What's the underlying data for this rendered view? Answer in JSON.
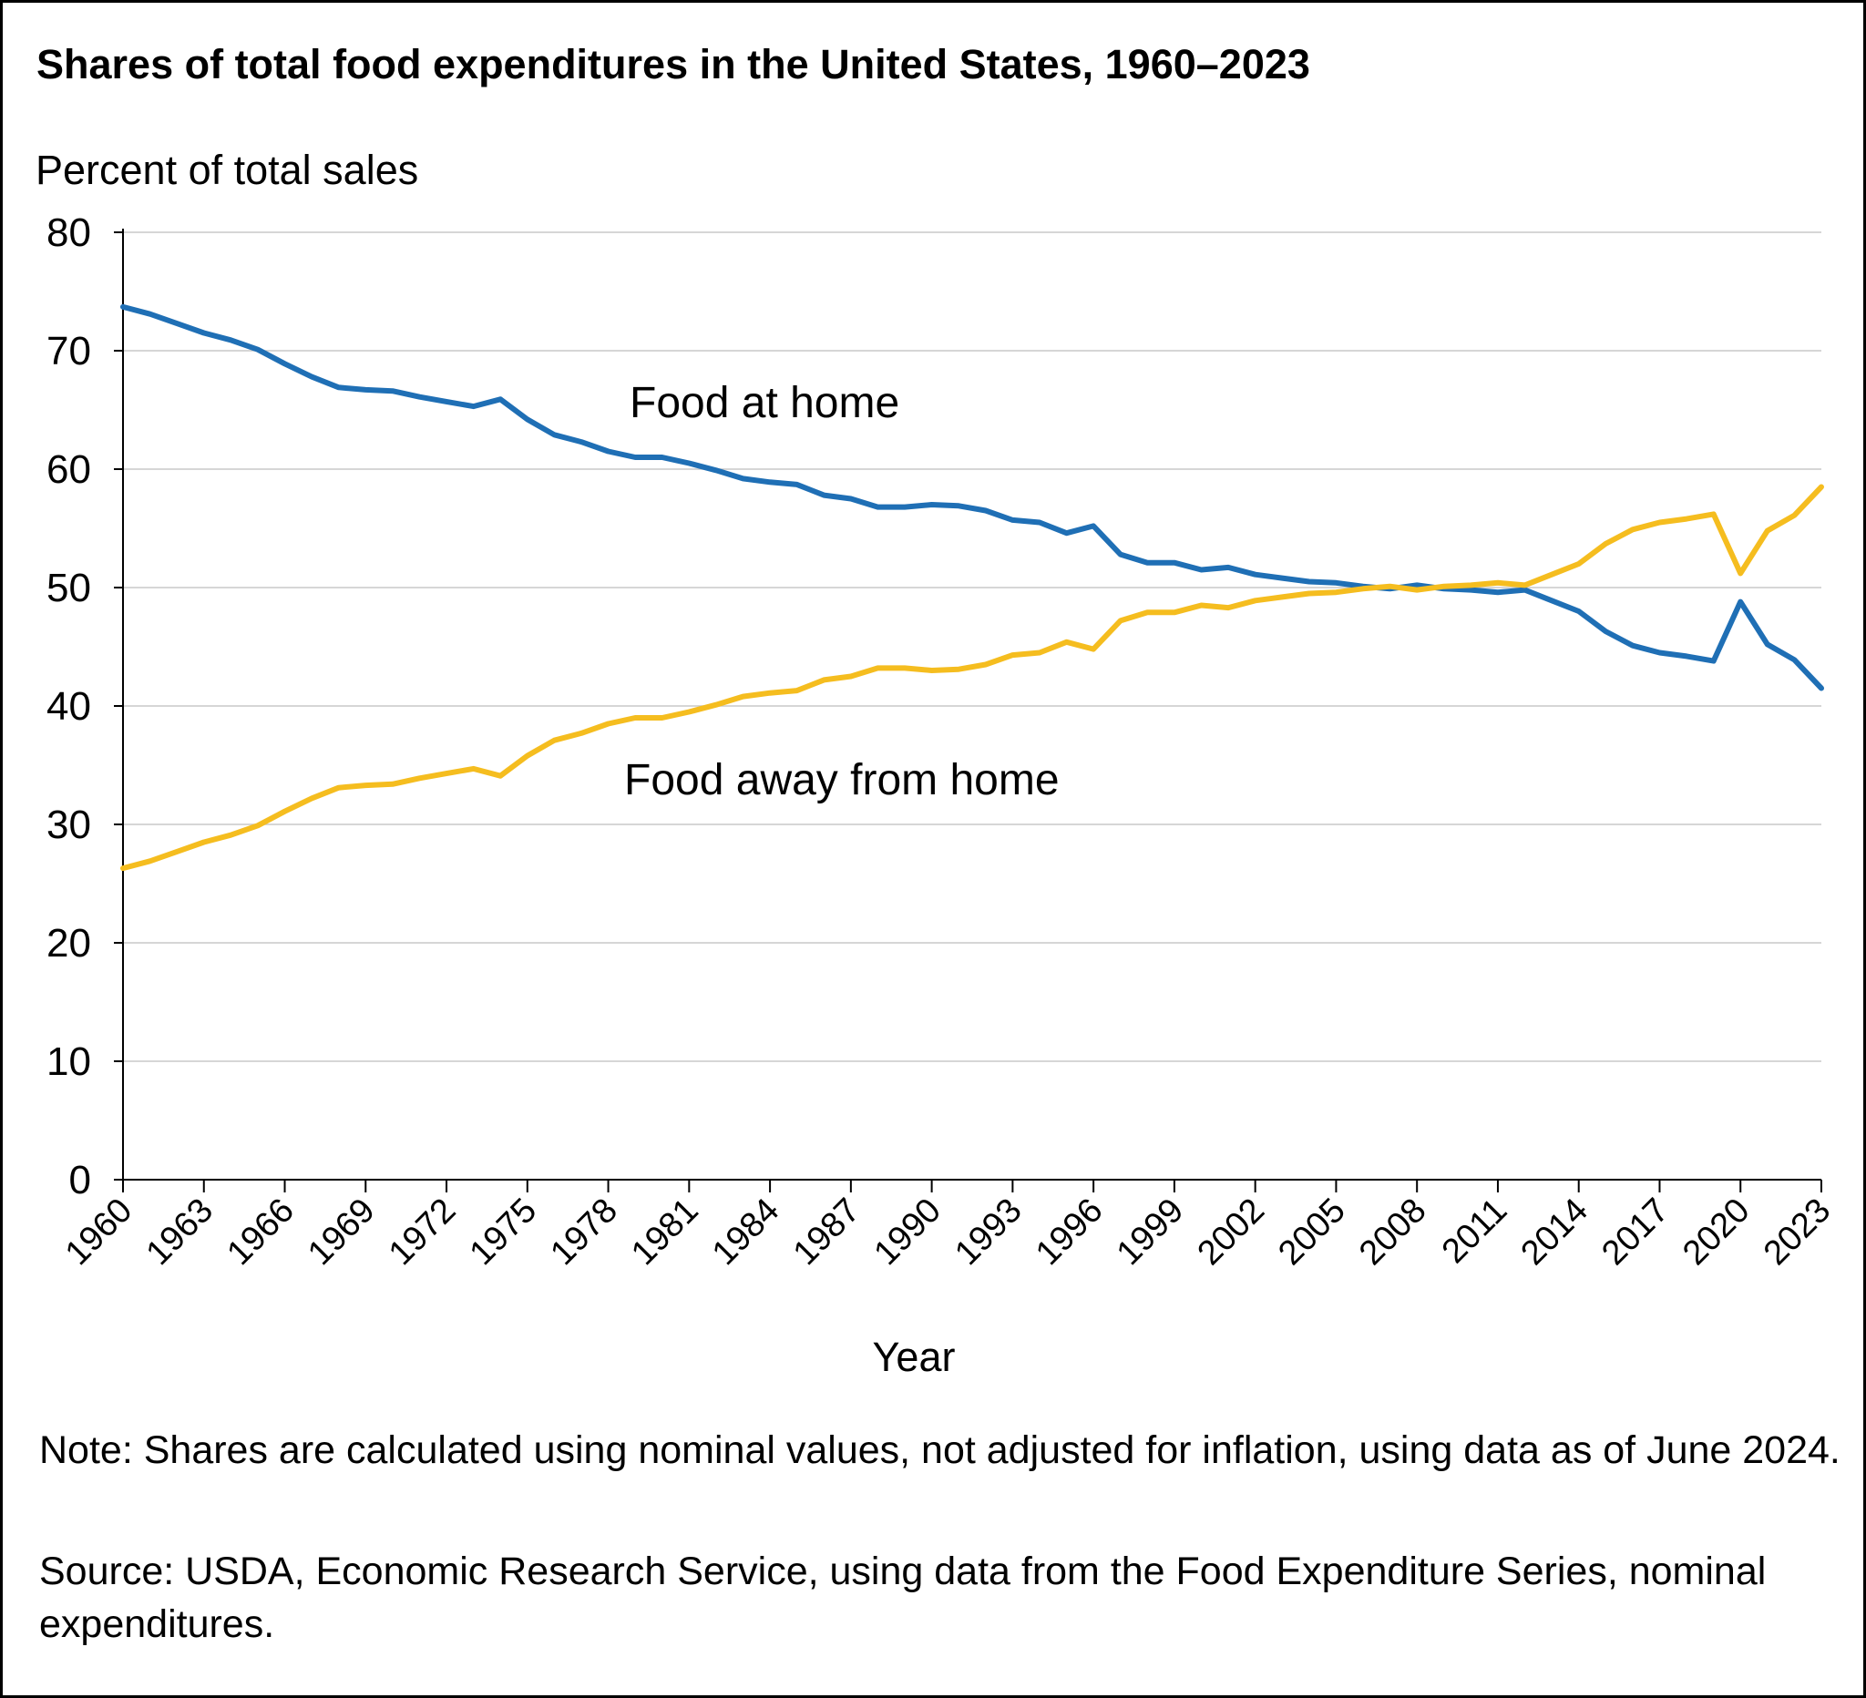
{
  "chart_data": {
    "type": "line",
    "title": "Shares of total food expenditures in the United States, 1960–2023",
    "ylabel": "Percent of total sales",
    "xlabel": "Year",
    "ylim": [
      0,
      80
    ],
    "yticks": [
      "0",
      "10",
      "20",
      "30",
      "40",
      "50",
      "60",
      "70",
      "80"
    ],
    "xlim": [
      1960,
      2023
    ],
    "xticks": [
      "1960",
      "1963",
      "1966",
      "1969",
      "1972",
      "1975",
      "1978",
      "1981",
      "1984",
      "1987",
      "1990",
      "1993",
      "1996",
      "1999",
      "2002",
      "2005",
      "2008",
      "2011",
      "2014",
      "2017",
      "2020",
      "2023"
    ],
    "grid": "horizontal",
    "x": [
      1960,
      1961,
      1962,
      1963,
      1964,
      1965,
      1966,
      1967,
      1968,
      1969,
      1970,
      1971,
      1972,
      1973,
      1974,
      1975,
      1976,
      1977,
      1978,
      1979,
      1980,
      1981,
      1982,
      1983,
      1984,
      1985,
      1986,
      1987,
      1988,
      1989,
      1990,
      1991,
      1992,
      1993,
      1994,
      1995,
      1996,
      1997,
      1998,
      1999,
      2000,
      2001,
      2002,
      2003,
      2004,
      2005,
      2006,
      2007,
      2008,
      2009,
      2010,
      2011,
      2012,
      2013,
      2014,
      2015,
      2016,
      2017,
      2018,
      2019,
      2020,
      2021,
      2022,
      2023
    ],
    "series": [
      {
        "name": "Food at home",
        "color": "#1f6fb5",
        "values": [
          73.7,
          73.1,
          72.3,
          71.5,
          70.9,
          70.1,
          68.9,
          67.8,
          66.9,
          66.7,
          66.6,
          66.1,
          65.7,
          65.3,
          65.9,
          64.2,
          62.9,
          62.3,
          61.5,
          61.0,
          61.0,
          60.5,
          59.9,
          59.2,
          58.9,
          58.7,
          57.8,
          57.5,
          56.8,
          56.8,
          57.0,
          56.9,
          56.5,
          55.7,
          55.5,
          54.6,
          55.2,
          52.8,
          52.1,
          52.1,
          51.5,
          51.7,
          51.1,
          50.8,
          50.5,
          50.4,
          50.1,
          49.9,
          50.2,
          49.9,
          49.8,
          49.6,
          49.8,
          48.9,
          48.0,
          46.3,
          45.1,
          44.5,
          44.2,
          43.8,
          48.8,
          45.2,
          43.9,
          41.5
        ]
      },
      {
        "name": "Food away from home",
        "color": "#f5bd1f",
        "values": [
          26.3,
          26.9,
          27.7,
          28.5,
          29.1,
          29.9,
          31.1,
          32.2,
          33.1,
          33.3,
          33.4,
          33.9,
          34.3,
          34.7,
          34.1,
          35.8,
          37.1,
          37.7,
          38.5,
          39.0,
          39.0,
          39.5,
          40.1,
          40.8,
          41.1,
          41.3,
          42.2,
          42.5,
          43.2,
          43.2,
          43.0,
          43.1,
          43.5,
          44.3,
          44.5,
          45.4,
          44.8,
          47.2,
          47.9,
          47.9,
          48.5,
          48.3,
          48.9,
          49.2,
          49.5,
          49.6,
          49.9,
          50.1,
          49.8,
          50.1,
          50.2,
          50.4,
          50.2,
          51.1,
          52.0,
          53.7,
          54.9,
          55.5,
          55.8,
          56.2,
          51.2,
          54.8,
          56.1,
          58.5
        ]
      }
    ]
  },
  "note": "Note: Shares are calculated using nominal values, not adjusted for inflation, using data as of June 2024.",
  "source": "Source: USDA, Economic Research Service, using data from the Food Expenditure Series, nominal expenditures."
}
